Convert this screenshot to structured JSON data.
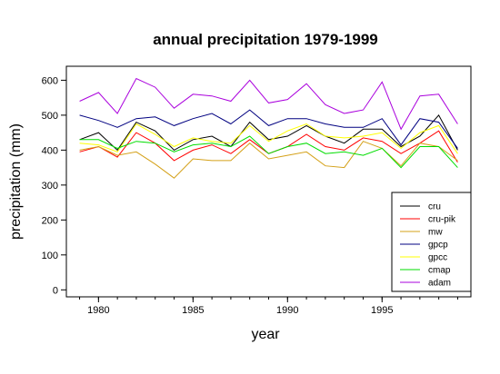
{
  "chart_data": {
    "type": "line",
    "title": "annual precipitation 1979-1999",
    "xlabel": "year",
    "ylabel": "precipitation (mm)",
    "xlim": [
      1978.3,
      1999.7
    ],
    "ylim": [
      -20,
      640
    ],
    "x_ticks": [
      1980,
      1985,
      1990,
      1995
    ],
    "y_ticks": [
      0,
      100,
      200,
      300,
      400,
      500,
      600
    ],
    "grid": false,
    "legend_position": "bottom-right",
    "x": [
      1979,
      1980,
      1981,
      1982,
      1983,
      1984,
      1985,
      1986,
      1987,
      1988,
      1989,
      1990,
      1991,
      1992,
      1993,
      1994,
      1995,
      1996,
      1997,
      1998,
      1999
    ],
    "series": [
      {
        "name": "cru",
        "color": "#000000",
        "values": [
          430,
          450,
          400,
          480,
          455,
          400,
          430,
          440,
          410,
          480,
          430,
          440,
          470,
          440,
          420,
          460,
          460,
          410,
          440,
          500,
          400
        ]
      },
      {
        "name": "cru-pik",
        "color": "#ff0000",
        "values": [
          395,
          410,
          380,
          450,
          420,
          370,
          400,
          415,
          390,
          430,
          390,
          410,
          445,
          410,
          400,
          435,
          425,
          390,
          420,
          455,
          365
        ]
      },
      {
        "name": "mw",
        "color": "#d4a017",
        "values": [
          400,
          410,
          385,
          395,
          360,
          320,
          375,
          370,
          370,
          420,
          375,
          385,
          395,
          355,
          350,
          425,
          405,
          355,
          420,
          410,
          370
        ]
      },
      {
        "name": "gpcp",
        "color": "#000080",
        "values": [
          500,
          485,
          465,
          490,
          495,
          470,
          490,
          505,
          475,
          515,
          470,
          490,
          490,
          475,
          465,
          465,
          490,
          415,
          490,
          480,
          405
        ]
      },
      {
        "name": "gpcc",
        "color": "#ffff00",
        "values": [
          420,
          415,
          395,
          475,
          445,
          410,
          435,
          425,
          420,
          470,
          425,
          455,
          475,
          440,
          435,
          440,
          450,
          405,
          450,
          470,
          390
        ]
      },
      {
        "name": "cmap",
        "color": "#00dd00",
        "values": [
          430,
          430,
          405,
          425,
          420,
          395,
          415,
          420,
          410,
          440,
          390,
          410,
          420,
          390,
          395,
          385,
          405,
          350,
          410,
          410,
          350
        ]
      },
      {
        "name": "adam",
        "color": "#aa00dd",
        "values": [
          540,
          565,
          505,
          605,
          580,
          520,
          560,
          555,
          540,
          600,
          535,
          545,
          590,
          530,
          505,
          515,
          595,
          460,
          555,
          560,
          475
        ]
      }
    ]
  }
}
